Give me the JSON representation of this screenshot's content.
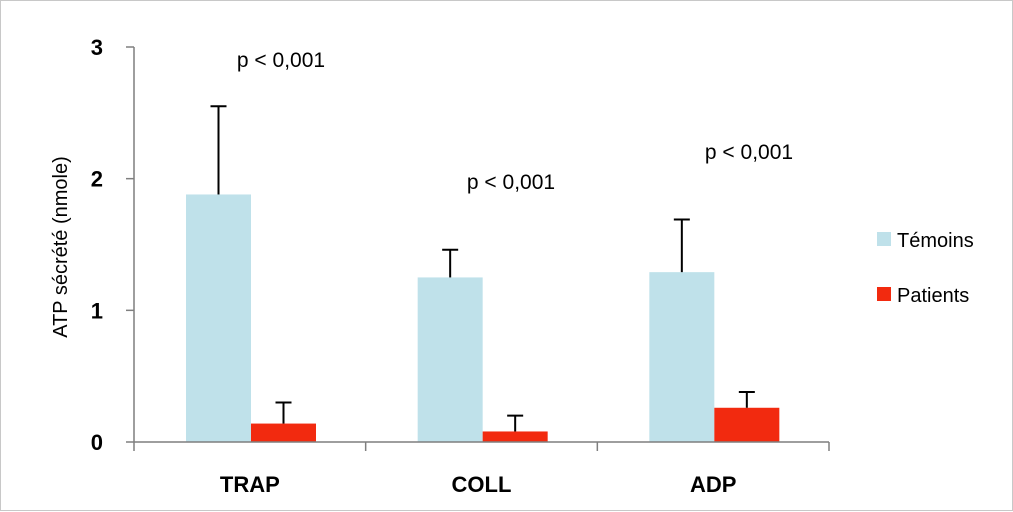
{
  "chart_data": {
    "type": "bar",
    "categories": [
      "TRAP",
      "COLL",
      "ADP"
    ],
    "series": [
      {
        "name": "Témoins",
        "color": "#bfe1ea",
        "values": [
          1.88,
          1.25,
          1.29
        ],
        "error": [
          0.67,
          0.21,
          0.4
        ]
      },
      {
        "name": "Patients",
        "color": "#f22a0f",
        "values": [
          0.14,
          0.08,
          0.26
        ],
        "error": [
          0.16,
          0.12,
          0.12
        ]
      }
    ],
    "ylabel": "ATP sécrété (nmole)",
    "ylim": [
      0,
      3
    ],
    "yticks": [
      "0",
      "1",
      "2",
      "3"
    ],
    "annotations": [
      "p < 0,001",
      "p < 0,001",
      "p < 0,001"
    ],
    "legend_position": "right",
    "grid": false
  }
}
